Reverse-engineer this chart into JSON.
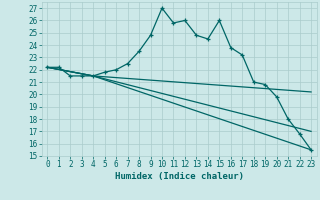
{
  "xlabel": "Humidex (Indice chaleur)",
  "bg_color": "#cce8e8",
  "grid_color": "#aacccc",
  "line_color": "#006666",
  "xlim": [
    -0.5,
    23.5
  ],
  "ylim": [
    15,
    27.5
  ],
  "yticks": [
    15,
    16,
    17,
    18,
    19,
    20,
    21,
    22,
    23,
    24,
    25,
    26,
    27
  ],
  "xticks": [
    0,
    1,
    2,
    3,
    4,
    5,
    6,
    7,
    8,
    9,
    10,
    11,
    12,
    13,
    14,
    15,
    16,
    17,
    18,
    19,
    20,
    21,
    22,
    23
  ],
  "line1_x": [
    0,
    1,
    2,
    3,
    4,
    5,
    6,
    7,
    8,
    9,
    10,
    11,
    12,
    13,
    14,
    15,
    16,
    17,
    18,
    19,
    20,
    21,
    22,
    23
  ],
  "line1_y": [
    22.2,
    22.2,
    21.5,
    21.5,
    21.5,
    21.8,
    22.0,
    22.5,
    23.5,
    24.8,
    27.0,
    25.8,
    26.0,
    24.8,
    24.5,
    26.0,
    23.8,
    23.2,
    21.0,
    20.8,
    19.8,
    18.0,
    16.8,
    15.5
  ],
  "line2_x": [
    0,
    4,
    23
  ],
  "line2_y": [
    22.2,
    21.5,
    15.5
  ],
  "line3_x": [
    0,
    4,
    23
  ],
  "line3_y": [
    22.2,
    21.5,
    20.2
  ],
  "line4_x": [
    0,
    4,
    23
  ],
  "line4_y": [
    22.2,
    21.5,
    17.0
  ],
  "tick_fontsize": 5.5,
  "xlabel_fontsize": 6.5,
  "linewidth": 0.9,
  "marker_size": 3.5
}
